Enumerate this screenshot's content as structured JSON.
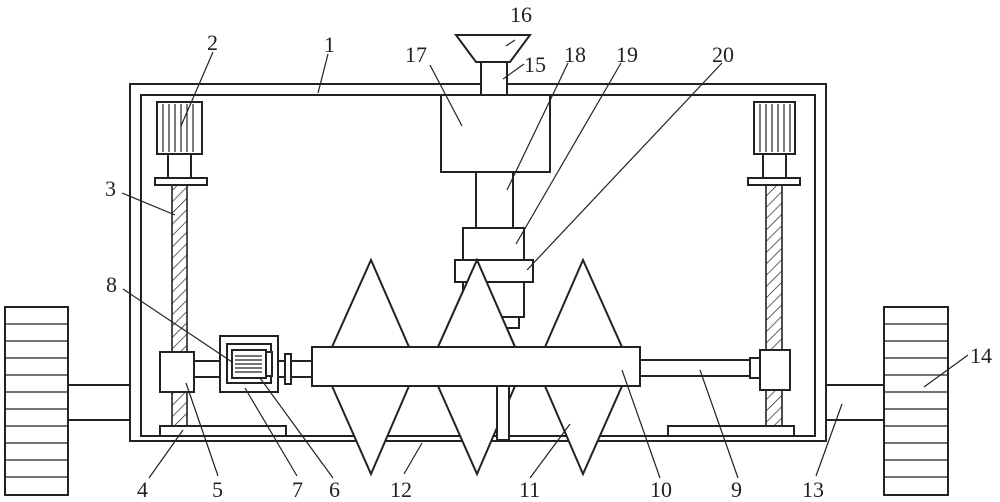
{
  "labels": {
    "l1": "1",
    "l2": "2",
    "l3": "3",
    "l4": "4",
    "l5": "5",
    "l6": "6",
    "l7": "7",
    "l8": "8",
    "l9": "9",
    "l10": "10",
    "l11": "11",
    "l12": "12",
    "l13": "13",
    "l14": "14",
    "l15": "15",
    "l16": "16",
    "l17": "17",
    "l18": "18",
    "l19": "19",
    "l20": "20"
  }
}
